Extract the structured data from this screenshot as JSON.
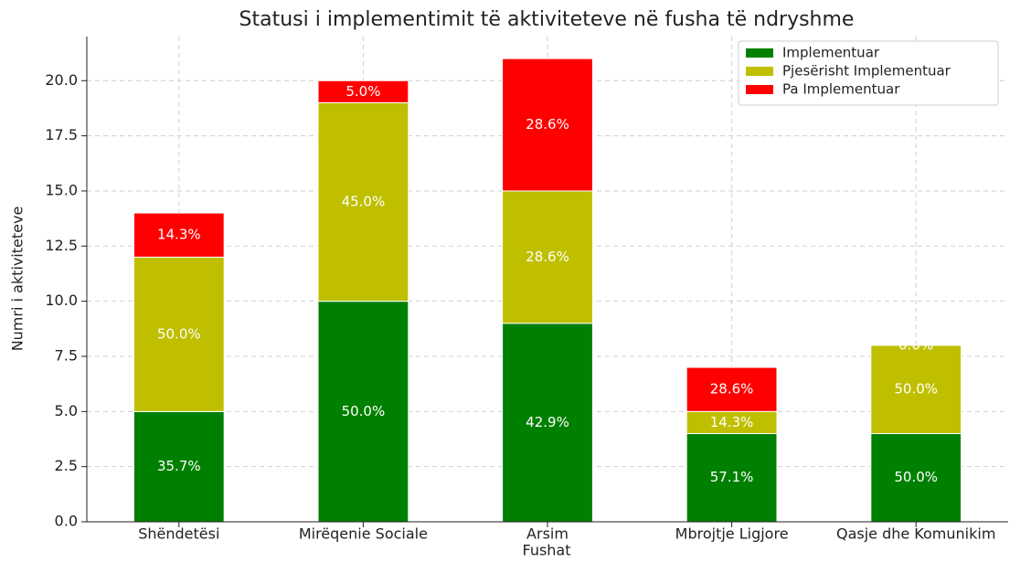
{
  "chart_data": {
    "type": "stacked_bar",
    "title": "Statusi i implementimit të aktiviteteve në fusha të ndryshme",
    "x_label": "Fushat",
    "y_label": "Numri i aktiviteteve",
    "categories": [
      "Shëndetësi",
      "Mirëqenie Sociale",
      "Arsim",
      "Mbrojtje Ligjore",
      "Qasje dhe Komunikim"
    ],
    "series": [
      {
        "name": "Implementuar",
        "color": "#008000",
        "values": [
          5,
          10,
          9,
          4,
          4
        ],
        "labels": [
          "35.7%",
          "50.0%",
          "42.9%",
          "57.1%",
          "50.0%"
        ]
      },
      {
        "name": "Pjesërisht Implementuar",
        "color": "#bfbf00",
        "values": [
          7,
          9,
          6,
          1,
          4
        ],
        "labels": [
          "50.0%",
          "45.0%",
          "28.6%",
          "14.3%",
          "50.0%"
        ]
      },
      {
        "name": "Pa Implementuar",
        "color": "#ff0000",
        "values": [
          2,
          1,
          6,
          2,
          0
        ],
        "labels": [
          "14.3%",
          "5.0%",
          "28.6%",
          "28.6%",
          "0.0%"
        ]
      }
    ],
    "ylim": [
      0,
      22
    ],
    "yticks": [
      {
        "value": 0,
        "label": "0.0"
      },
      2.5,
      {
        "value": 5,
        "label": "5.0"
      },
      7.5,
      {
        "value": 10,
        "label": "10.0"
      },
      12.5,
      {
        "value": 15,
        "label": "15.0"
      },
      17.5,
      {
        "value": 20,
        "label": "20.0"
      }
    ],
    "grid": true,
    "legend": "upper right"
  }
}
